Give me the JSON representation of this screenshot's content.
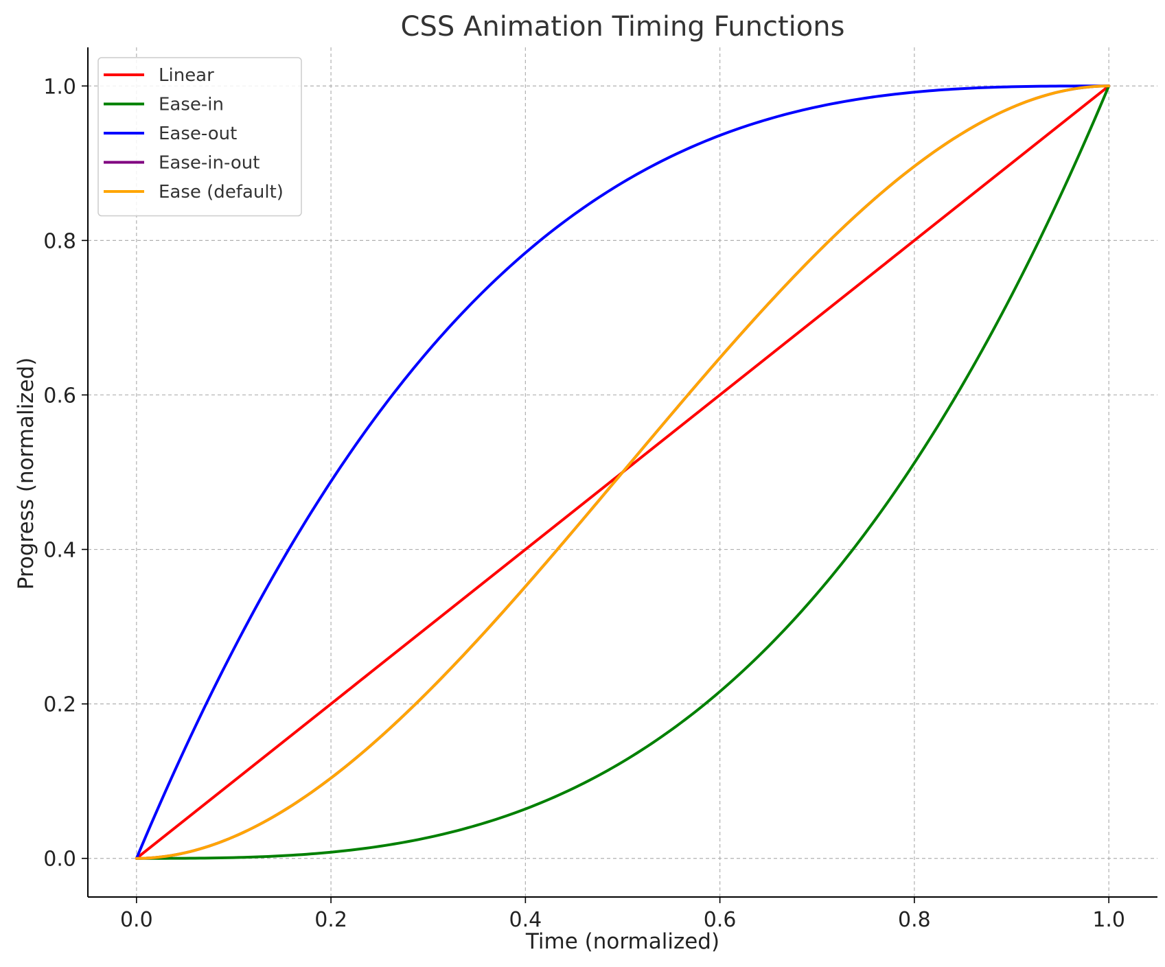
{
  "chart_data": {
    "type": "line",
    "title": "CSS Animation Timing Functions",
    "xlabel": "Time (normalized)",
    "ylabel": "Progress (normalized)",
    "xlim": [
      -0.05,
      1.05
    ],
    "ylim": [
      -0.05,
      1.05
    ],
    "xticks": [
      "0.0",
      "0.2",
      "0.4",
      "0.6",
      "0.8",
      "1.0"
    ],
    "yticks": [
      "0.0",
      "0.2",
      "0.4",
      "0.6",
      "0.8",
      "1.0"
    ],
    "grid": true,
    "legend_position": "upper-left",
    "x": [
      0.0,
      0.05,
      0.1,
      0.15,
      0.2,
      0.25,
      0.3,
      0.35,
      0.4,
      0.45,
      0.5,
      0.55,
      0.6,
      0.65,
      0.7,
      0.75,
      0.8,
      0.85,
      0.9,
      0.95,
      1.0
    ],
    "series": [
      {
        "name": "Linear",
        "color": "#ff0000",
        "values": [
          0.0,
          0.05,
          0.1,
          0.15,
          0.2,
          0.25,
          0.3,
          0.35,
          0.4,
          0.45,
          0.5,
          0.55,
          0.6,
          0.65,
          0.7,
          0.75,
          0.8,
          0.85,
          0.9,
          0.95,
          1.0
        ]
      },
      {
        "name": "Ease-in",
        "color": "#008000",
        "values": [
          0.0,
          0.0,
          0.001,
          0.003,
          0.008,
          0.016,
          0.027,
          0.043,
          0.064,
          0.091,
          0.125,
          0.166,
          0.216,
          0.275,
          0.343,
          0.422,
          0.512,
          0.614,
          0.729,
          0.857,
          1.0
        ]
      },
      {
        "name": "Ease-out",
        "color": "#0000ff",
        "values": [
          0.0,
          0.143,
          0.271,
          0.386,
          0.488,
          0.578,
          0.657,
          0.725,
          0.784,
          0.834,
          0.875,
          0.909,
          0.936,
          0.957,
          0.973,
          0.984,
          0.992,
          0.997,
          0.999,
          1.0,
          1.0
        ]
      },
      {
        "name": "Ease-in-out",
        "color": "#800080",
        "values": [
          0.0,
          0.007,
          0.028,
          0.061,
          0.104,
          0.156,
          0.216,
          0.282,
          0.352,
          0.425,
          0.5,
          0.575,
          0.648,
          0.718,
          0.784,
          0.844,
          0.896,
          0.939,
          0.972,
          0.993,
          1.0
        ]
      },
      {
        "name": "Ease (default)",
        "color": "#ffa500",
        "values": [
          0.0,
          0.007,
          0.028,
          0.061,
          0.104,
          0.156,
          0.216,
          0.282,
          0.352,
          0.425,
          0.5,
          0.575,
          0.648,
          0.718,
          0.784,
          0.844,
          0.896,
          0.939,
          0.972,
          0.993,
          1.0
        ]
      }
    ]
  }
}
